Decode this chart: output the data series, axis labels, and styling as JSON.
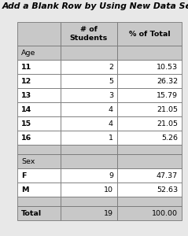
{
  "title": "Add a Blank Row by Using New Data Set Variables",
  "col_headers": [
    "# of\nStudents",
    "% of Total"
  ],
  "rows": [
    {
      "label": "Age",
      "bold_label": false,
      "val1": "",
      "val2": "",
      "bg": "#c8c8c8"
    },
    {
      "label": "11",
      "bold_label": true,
      "val1": "2",
      "val2": "10.53",
      "bg": "#ffffff"
    },
    {
      "label": "12",
      "bold_label": true,
      "val1": "5",
      "val2": "26.32",
      "bg": "#ffffff"
    },
    {
      "label": "13",
      "bold_label": true,
      "val1": "3",
      "val2": "15.79",
      "bg": "#ffffff"
    },
    {
      "label": "14",
      "bold_label": true,
      "val1": "4",
      "val2": "21.05",
      "bg": "#ffffff"
    },
    {
      "label": "15",
      "bold_label": true,
      "val1": "4",
      "val2": "21.05",
      "bg": "#ffffff"
    },
    {
      "label": "16",
      "bold_label": true,
      "val1": "1",
      "val2": "5.26",
      "bg": "#ffffff"
    },
    {
      "label": "",
      "bold_label": false,
      "val1": "",
      "val2": "",
      "bg": "#c8c8c8",
      "blank": true
    },
    {
      "label": "Sex",
      "bold_label": false,
      "val1": "",
      "val2": "",
      "bg": "#c8c8c8"
    },
    {
      "label": "F",
      "bold_label": true,
      "val1": "9",
      "val2": "47.37",
      "bg": "#ffffff"
    },
    {
      "label": "M",
      "bold_label": true,
      "val1": "10",
      "val2": "52.63",
      "bg": "#ffffff"
    },
    {
      "label": "",
      "bold_label": false,
      "val1": "",
      "val2": "",
      "bg": "#c8c8c8",
      "blank": true
    },
    {
      "label": "Total",
      "bold_label": true,
      "val1": "19",
      "val2": "100.00",
      "bg": "#c8c8c8"
    }
  ],
  "header_bg": "#c8c8c8",
  "border_color": "#777777",
  "title_fontsize": 7.8,
  "cell_fontsize": 6.8,
  "header_fontsize": 6.8,
  "fig_bg": "#e8e8e8"
}
